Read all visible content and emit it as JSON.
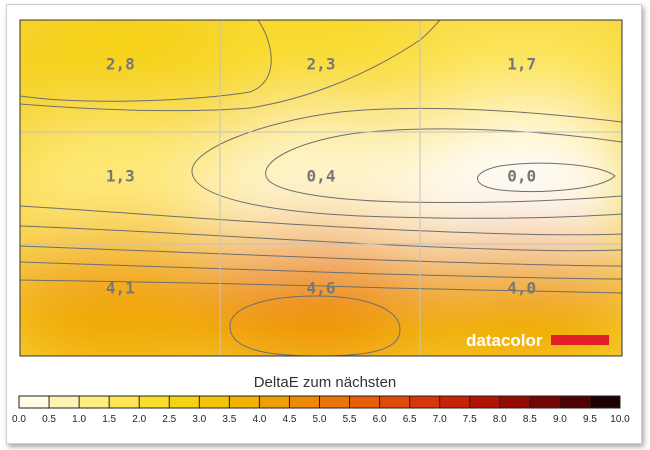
{
  "chart_data": {
    "type": "heatmap",
    "title": "",
    "grid": {
      "rows": 3,
      "cols": 3
    },
    "cells": [
      [
        {
          "value": 2.8,
          "label": "2,8"
        },
        {
          "value": 2.3,
          "label": "2,3"
        },
        {
          "value": 1.7,
          "label": "1,7"
        }
      ],
      [
        {
          "value": 1.3,
          "label": "1,3"
        },
        {
          "value": 0.4,
          "label": "0,4"
        },
        {
          "value": 0.0,
          "label": "0,0"
        }
      ],
      [
        {
          "value": 4.1,
          "label": "4,1"
        },
        {
          "value": 4.6,
          "label": "4,6"
        },
        {
          "value": 4.0,
          "label": "4,0"
        }
      ]
    ],
    "colorbar": {
      "label": "DeltaE zum nächsten",
      "range": [
        0,
        10
      ],
      "ticks": [
        "0.0",
        "0.5",
        "1.0",
        "1.5",
        "2.0",
        "2.5",
        "3.0",
        "3.5",
        "4.0",
        "4.5",
        "5.0",
        "5.5",
        "6.0",
        "6.5",
        "7.0",
        "7.5",
        "8.0",
        "8.5",
        "9.0",
        "9.5",
        "10.0"
      ],
      "colors": [
        "#ffffff",
        "#fff6c8",
        "#fff09a",
        "#ffe96a",
        "#fbe13c",
        "#f7d81a",
        "#f4cd0a",
        "#f2bb06",
        "#f0a804",
        "#ee9406",
        "#ec7e08",
        "#e96a08",
        "#e4540a",
        "#dc400a",
        "#cf2c08",
        "#bd1a06",
        "#a40e04",
        "#860704",
        "#620402",
        "#3a0201",
        "#000000"
      ]
    },
    "watermark": "datacolor",
    "brand_colors": {
      "watermark_text": "#ffffff",
      "watermark_bar": "#e01e26",
      "contour": "#6e6e6e",
      "grid": "#bdbdbd"
    }
  }
}
